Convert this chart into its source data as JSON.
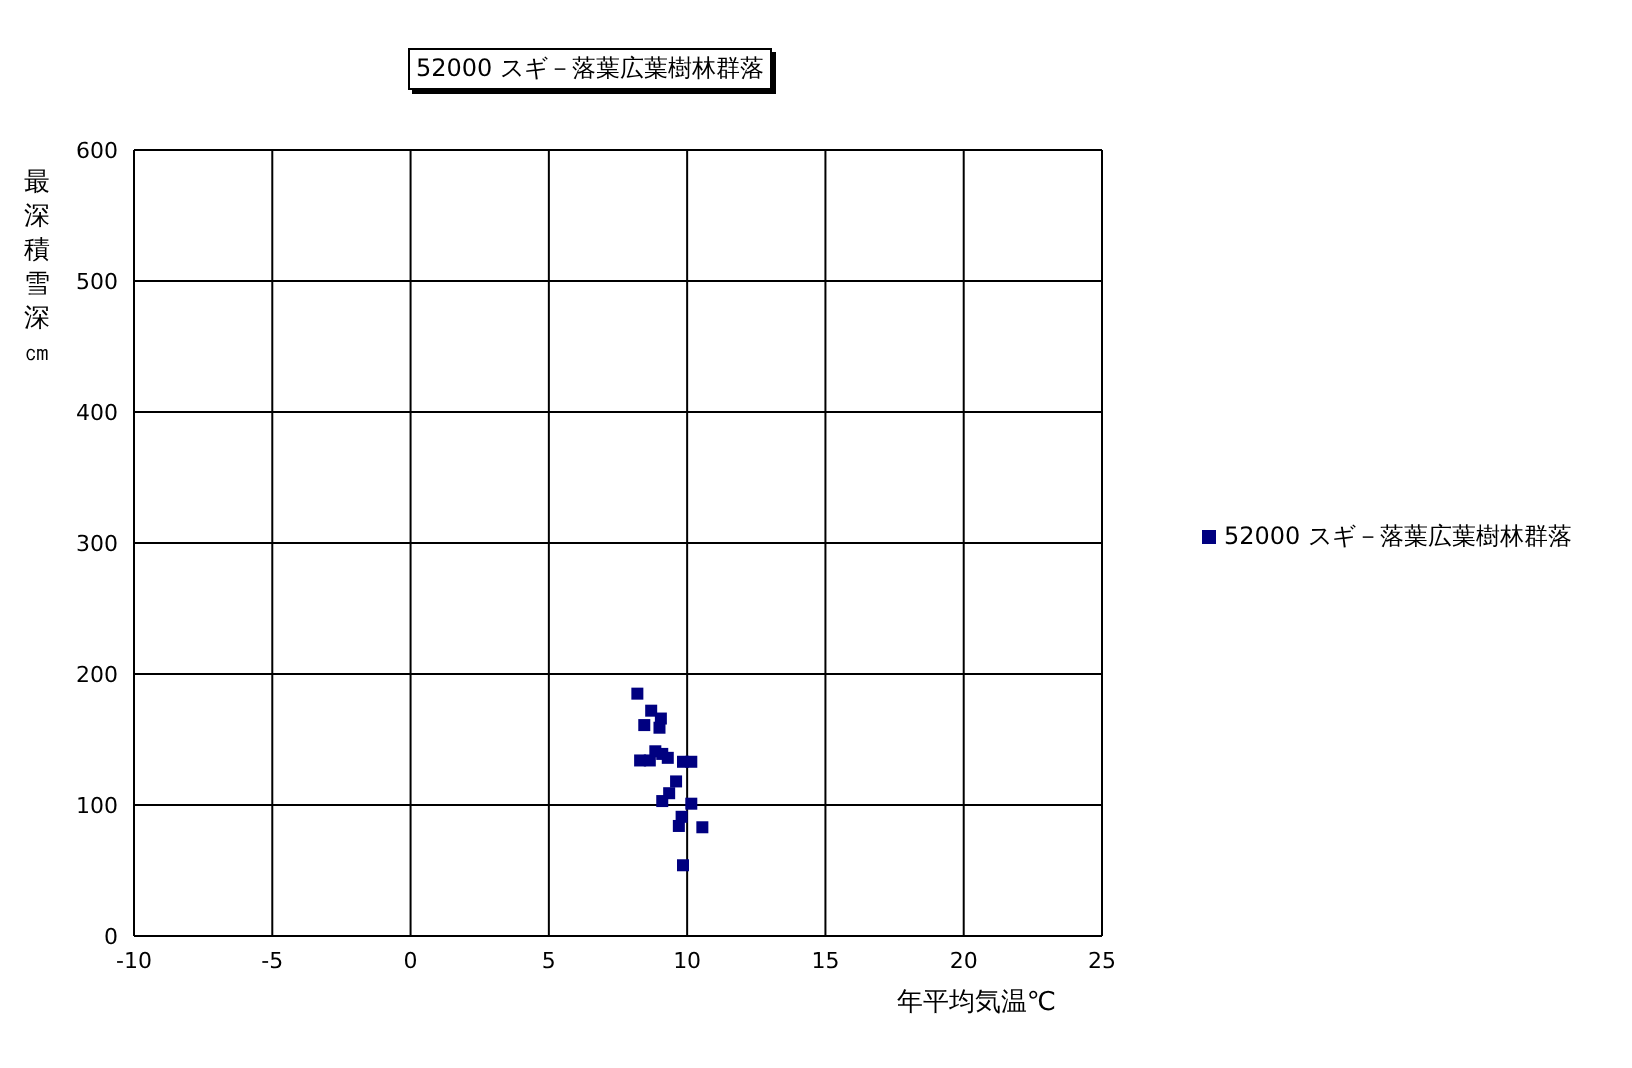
{
  "chart_data": {
    "type": "scatter",
    "title": "52000 スギ－落葉広葉樹林群落",
    "xlabel": "年平均気温℃",
    "ylabel": "最深積雪深㎝",
    "xlim": [
      -10,
      25
    ],
    "xticks": [
      -10,
      -5,
      0,
      5,
      10,
      15,
      20,
      25
    ],
    "ylim": [
      0,
      600
    ],
    "yticks": [
      0,
      100,
      200,
      300,
      400,
      500,
      600
    ],
    "grid": true,
    "legend": "right",
    "marker": "square",
    "series": [
      {
        "name": "52000 スギ－落葉広葉樹林群落",
        "color": "#000080",
        "x": [
          8.2,
          8.7,
          9.05,
          8.45,
          9.0,
          8.3,
          8.65,
          8.85,
          9.1,
          9.3,
          9.85,
          10.15,
          9.6,
          9.35,
          9.1,
          10.15,
          9.8,
          9.7,
          10.55,
          9.85
        ],
        "values": [
          185,
          172,
          166,
          161,
          159,
          134,
          134,
          141,
          139,
          136,
          133,
          133,
          118,
          109,
          103,
          101,
          91,
          84,
          83,
          54
        ]
      }
    ]
  }
}
